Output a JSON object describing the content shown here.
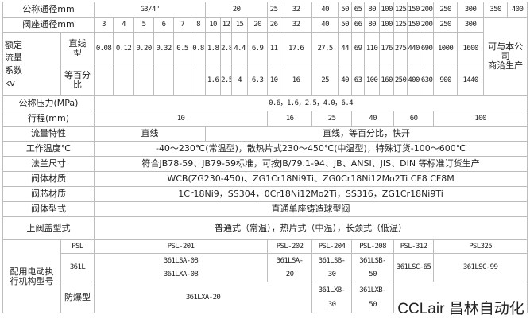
{
  "labels": {
    "nominal_dia": "公称通径mm",
    "seat_dia": "阀座通径mm",
    "kv_group": "额定\n流量\n系数\nkv",
    "kv_linear": "直线\n型",
    "kv_equal": "等百分\n比",
    "pressure": "公称压力(MPa)",
    "stroke": "行程(mm)",
    "flow_char": "流量特性",
    "temp": "工作温度℃",
    "flange": "法兰尺寸",
    "body_mat": "阀体材质",
    "core_mat": "阀芯材质",
    "body_type": "阀体型式",
    "bonnet": "上阀盖型式",
    "actuator": "配用电动执\n行机构型号",
    "psl": "PSL",
    "l361": "361L",
    "explosion": "防爆型"
  },
  "nominal": [
    "G3/4\"",
    "20",
    "25",
    "32",
    "40",
    "50",
    "65",
    "80",
    "100",
    "125",
    "150",
    "200",
    "250",
    "300",
    "350",
    "400"
  ],
  "seat": [
    "3",
    "4",
    "5",
    "6",
    "7",
    "8",
    "10",
    "12",
    "15",
    "20",
    "26",
    "32",
    "40",
    "50",
    "66",
    "80",
    "100",
    "125",
    "150",
    "200",
    "250",
    "300"
  ],
  "custom_note": "可与本公\n司\n商洽生产",
  "kv_linear": [
    "0.08",
    "0.12",
    "0.20",
    "0.32",
    "0.5",
    "0.8",
    "1.8",
    "2.8",
    "4.4",
    "6.9",
    "11",
    "17.6",
    "27.5",
    "44",
    "69",
    "110",
    "176",
    "275",
    "440",
    "690",
    "1000",
    "1600"
  ],
  "kv_equal": [
    "",
    "",
    "",
    "",
    "",
    "",
    "1.6",
    "2.5",
    "4",
    "6.3",
    "10",
    "16",
    "25",
    "40",
    "63",
    "100",
    "160",
    "250",
    "400",
    "630",
    "900",
    "1440"
  ],
  "pressure": "0.6，1.6，2.5，4.0，6.4",
  "stroke": [
    "10",
    "16",
    "25",
    "40",
    "60",
    "100"
  ],
  "flow_char": [
    "直线",
    "直线，等百分比，快开"
  ],
  "temp": "-40～230℃(常温型)，散热片式230～450℃(中温型)，特殊订货-100～600℃",
  "flange": "符合JB78-59、JB79-59标准，可按JB/79.1-94、JB、ANSI、JIS、DIN 等标准订货生产",
  "body_mat": "WCB(ZG230-450)、ZG1Cr18Ni9Ti、ZG0Cr18Ni12Mo2Ti CF8 CF8M",
  "core_mat": "1Cr18Ni9，SS304，0Cr18Ni12Mo2Ti，SS316，ZG1Cr18Ni9Ti",
  "body_type": "直通单座铸造球型阀",
  "bonnet": "普通式（常温），热片式（中温），长颈式（低温）",
  "psl": [
    "PSL-201",
    "PSL-202",
    "PSL-204",
    "PSL-208",
    "PSL-312",
    "PSL325"
  ],
  "l361": [
    "361LSA-08\n361LXA-08",
    "361LSA-\n20",
    "361LSB-\n30",
    "361LSB-\n50",
    "361LSC-65",
    "361LSC-99"
  ],
  "explosion": [
    "361LXA-20",
    "361LXB-\n30",
    "361LXB-\n50"
  ],
  "watermark": "CCLair 昌林自动化"
}
